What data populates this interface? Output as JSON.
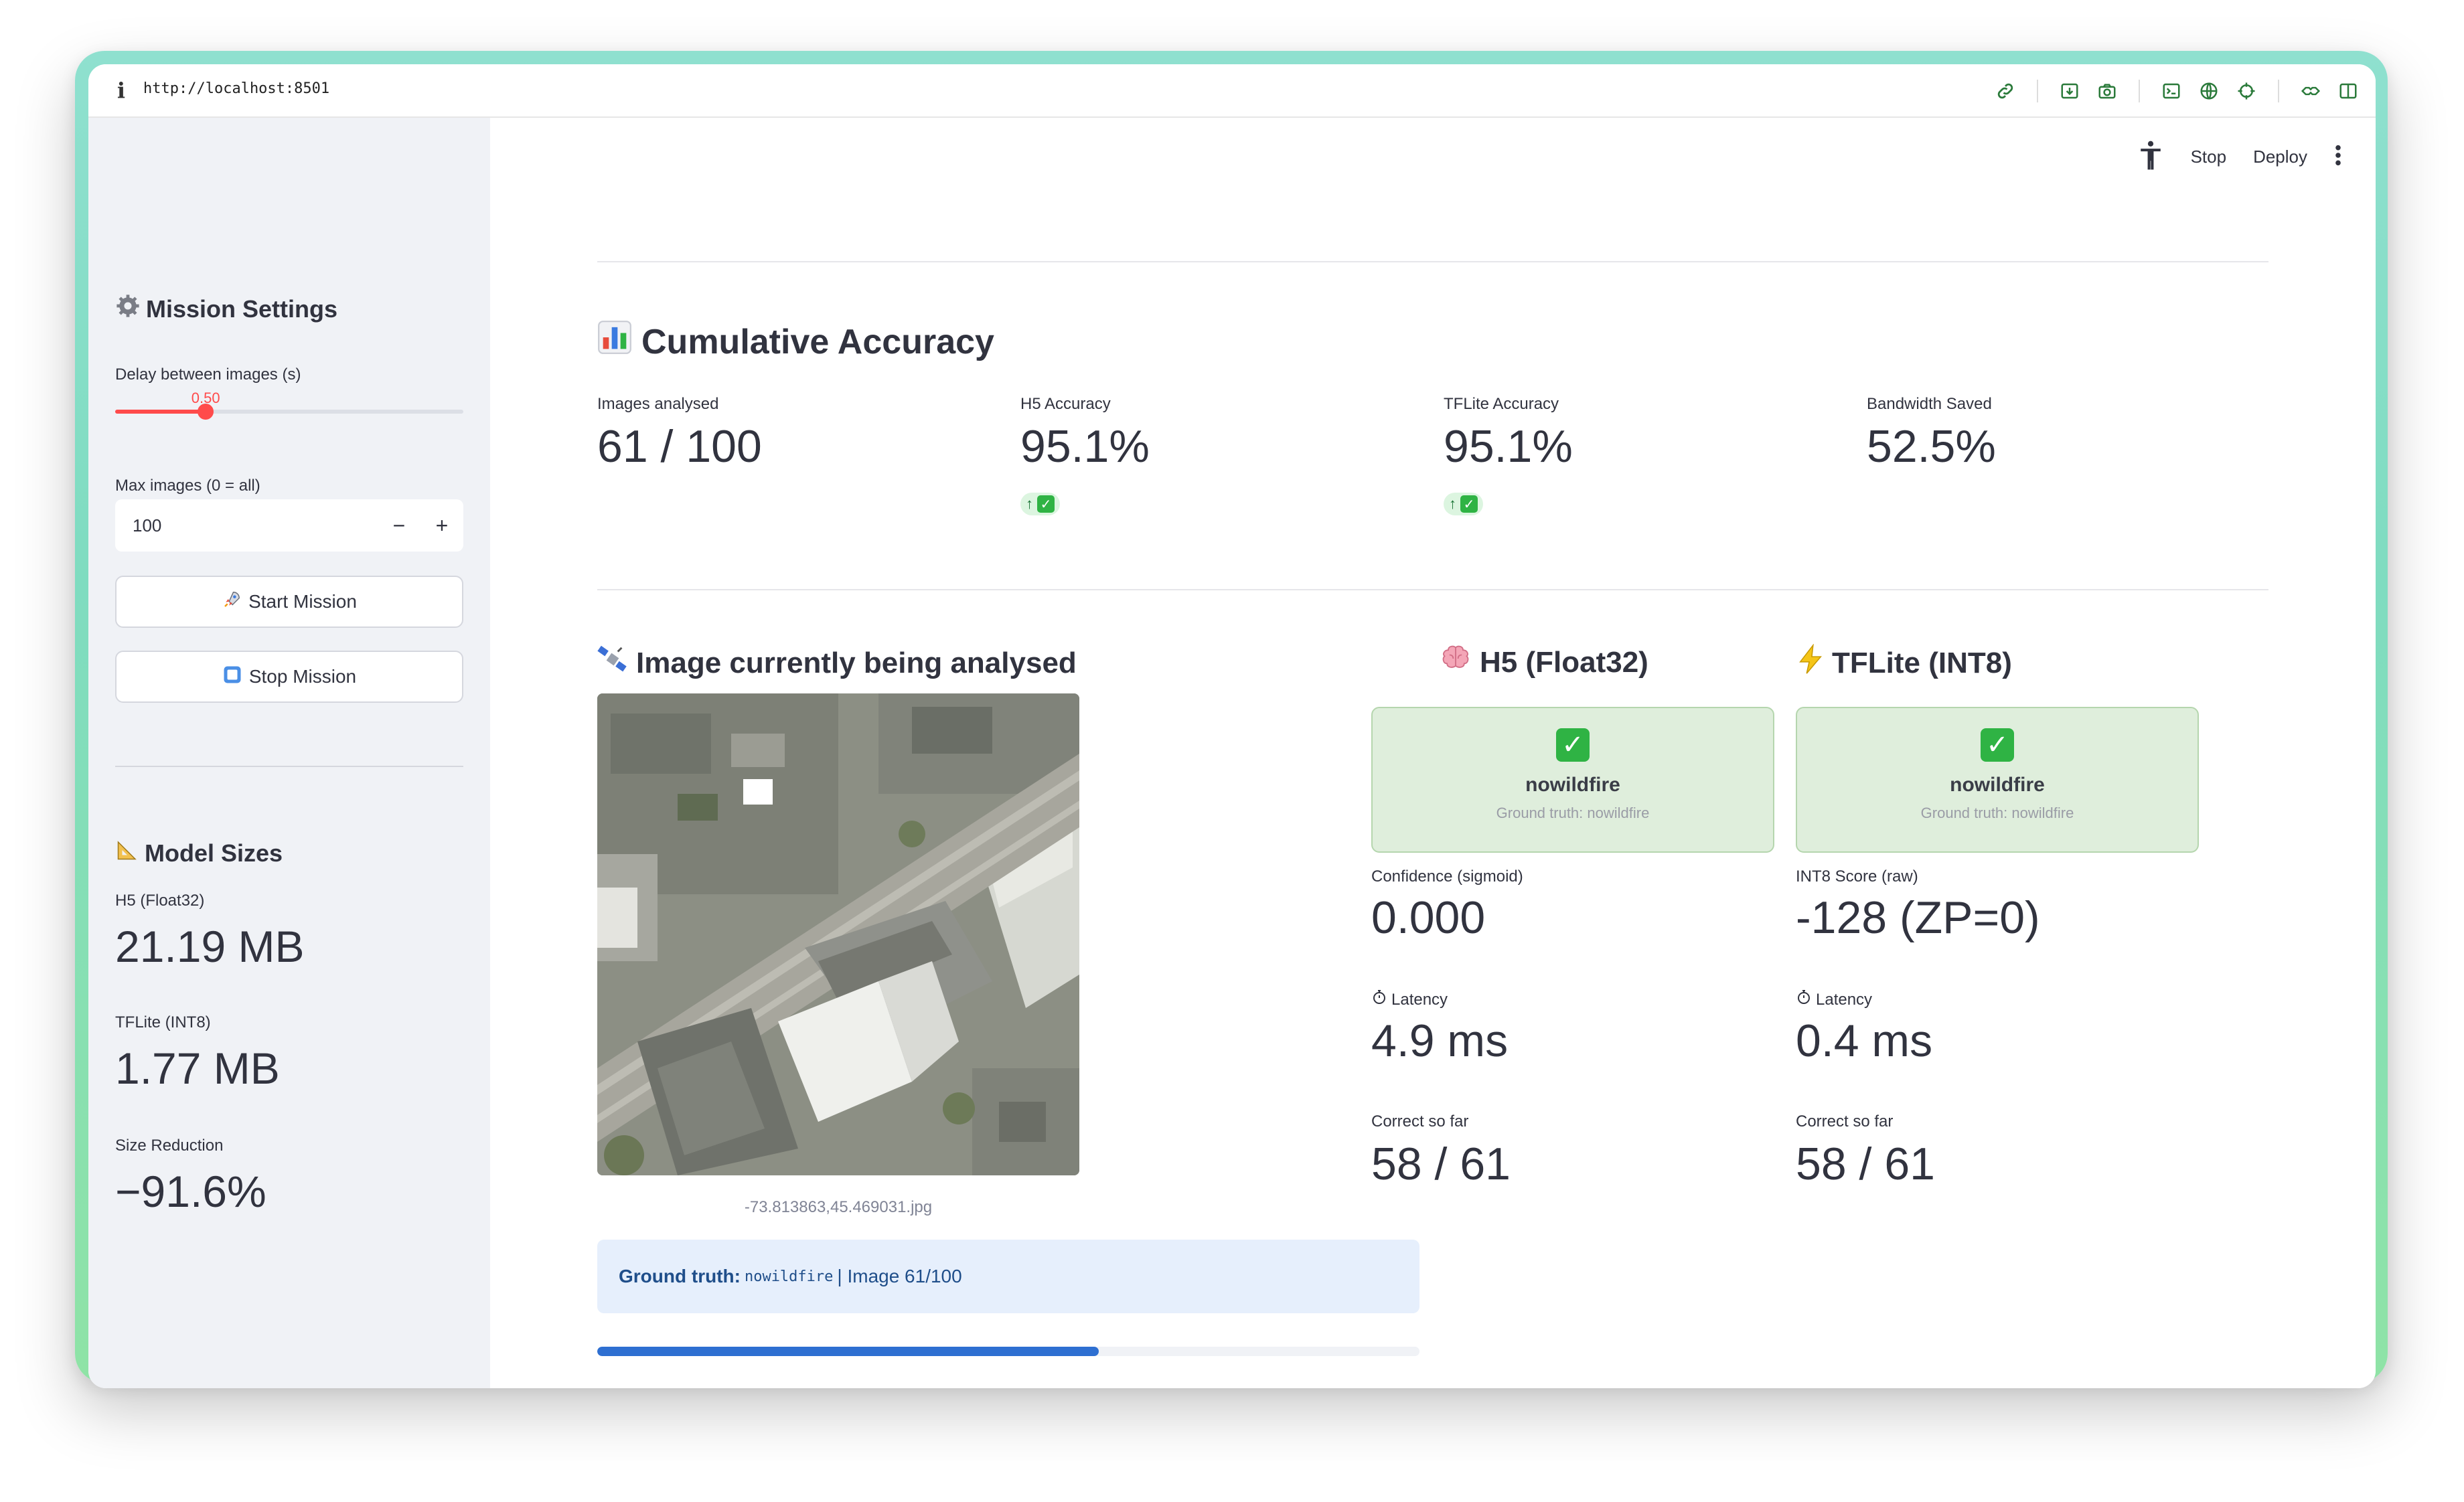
{
  "browser": {
    "url": "http://localhost:8501"
  },
  "sidebar": {
    "mission_settings": {
      "icon": "gear-icon",
      "title": "Mission Settings",
      "delay_label": "Delay between images (s)",
      "delay_value": "0.50",
      "delay_fraction": 0.26,
      "max_images_label": "Max images (0 = all)",
      "max_images_value": "100",
      "decrement_label": "−",
      "increment_label": "+",
      "start_button": "Start Mission",
      "start_icon": "rocket-icon",
      "stop_button": "Stop Mission",
      "stop_icon": "stop-square-icon"
    },
    "model_sizes": {
      "icon": "triangular-ruler-icon",
      "title": "Model Sizes",
      "h5_label": "H5 (Float32)",
      "h5_value": "21.19 MB",
      "tflite_label": "TFLite (INT8)",
      "tflite_value": "1.77 MB",
      "reduction_label": "Size Reduction",
      "reduction_value": "−91.6%"
    }
  },
  "toolbar": {
    "stop_label": "Stop",
    "deploy_label": "Deploy"
  },
  "cumulative": {
    "icon": "bar-chart-icon",
    "title": "Cumulative Accuracy",
    "metrics": [
      {
        "label": "Images analysed",
        "value": "61 / 100"
      },
      {
        "label": "H5 Accuracy",
        "value": "95.1%",
        "delta": "↑"
      },
      {
        "label": "TFLite Accuracy",
        "value": "95.1%",
        "delta": "↑"
      },
      {
        "label": "Bandwidth Saved",
        "value": "52.5%"
      }
    ]
  },
  "current_image": {
    "icon": "satellite-icon",
    "title": "Image currently being analysed",
    "caption": "-73.813863,45.469031.jpg",
    "ground_truth_label": "Ground truth:",
    "ground_truth_value": "nowildfire",
    "image_counter": "| Image 61/100",
    "progress_fraction": 0.61
  },
  "h5": {
    "icon": "brain-icon",
    "title": "H5 (Float32)",
    "prediction": "nowildfire",
    "ground_truth": "Ground truth: nowildfire",
    "score_label": "Confidence (sigmoid)",
    "score_value": "0.000",
    "latency_icon": "stopwatch-icon",
    "latency_label": "Latency",
    "latency_value": "4.9 ms",
    "correct_label": "Correct so far",
    "correct_value": "58 / 61"
  },
  "tflite": {
    "icon": "lightning-icon",
    "title": "TFLite (INT8)",
    "prediction": "nowildfire",
    "ground_truth": "Ground truth: nowildfire",
    "score_label": "INT8 Score (raw)",
    "score_value": "-128 (ZP=0)",
    "latency_icon": "stopwatch-icon",
    "latency_label": "Latency",
    "latency_value": "0.4 ms",
    "correct_label": "Correct so far",
    "correct_value": "58 / 61"
  },
  "colors": {
    "accent": "#ff4b4b",
    "progress": "#2e6fd1",
    "success_bg": "#dfeedc",
    "info_bg": "#e6effc"
  }
}
